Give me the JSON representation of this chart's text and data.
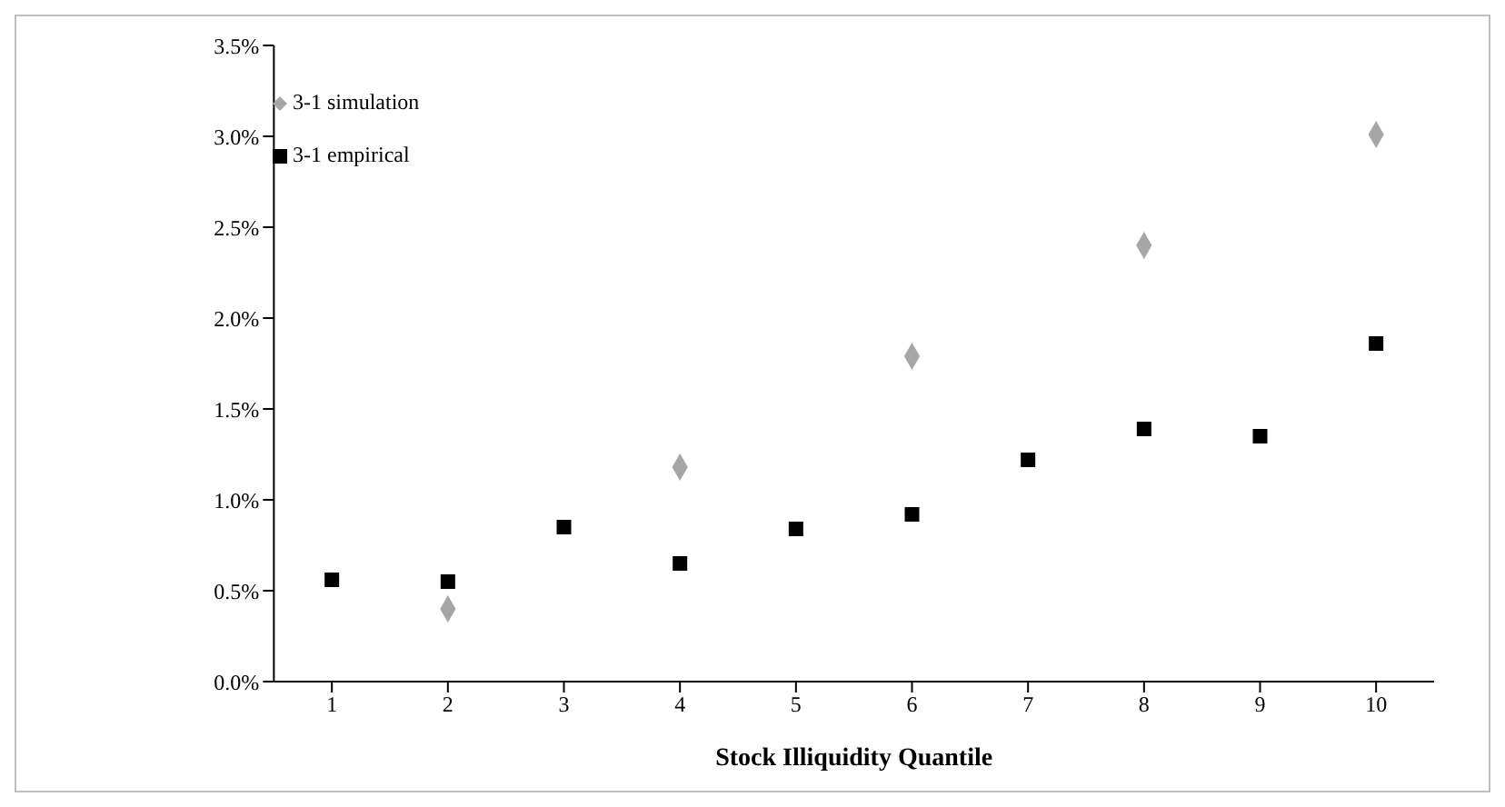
{
  "chart_data": {
    "type": "scatter",
    "xlabel": "Stock Illiquidity Quantile",
    "categories": [
      "1",
      "2",
      "3",
      "4",
      "5",
      "6",
      "7",
      "8",
      "9",
      "10"
    ],
    "series": [
      {
        "name": "3-1 simulation",
        "color": "#a6a6a6",
        "marker": "diamond",
        "values": [
          null,
          0.4,
          null,
          1.18,
          null,
          1.79,
          null,
          2.4,
          null,
          3.01
        ]
      },
      {
        "name": "3-1 empirical",
        "color": "#000000",
        "marker": "square",
        "values": [
          0.56,
          0.55,
          0.85,
          0.65,
          0.84,
          0.92,
          1.22,
          1.39,
          1.35,
          1.86
        ]
      }
    ],
    "ylim": [
      0,
      3.5
    ],
    "yticks": [
      {
        "value": 0,
        "label": "0.0%"
      },
      {
        "value": 0.5,
        "label": "0.5%"
      },
      {
        "value": 1,
        "label": "1.0%"
      },
      {
        "value": 1.5,
        "label": "1.5%"
      },
      {
        "value": 2,
        "label": "2.0%"
      },
      {
        "value": 2.5,
        "label": "2.5%"
      },
      {
        "value": 3,
        "label": "3.0%"
      },
      {
        "value": 3.5,
        "label": "3.5%"
      }
    ],
    "grid": false,
    "legend": "top left"
  }
}
